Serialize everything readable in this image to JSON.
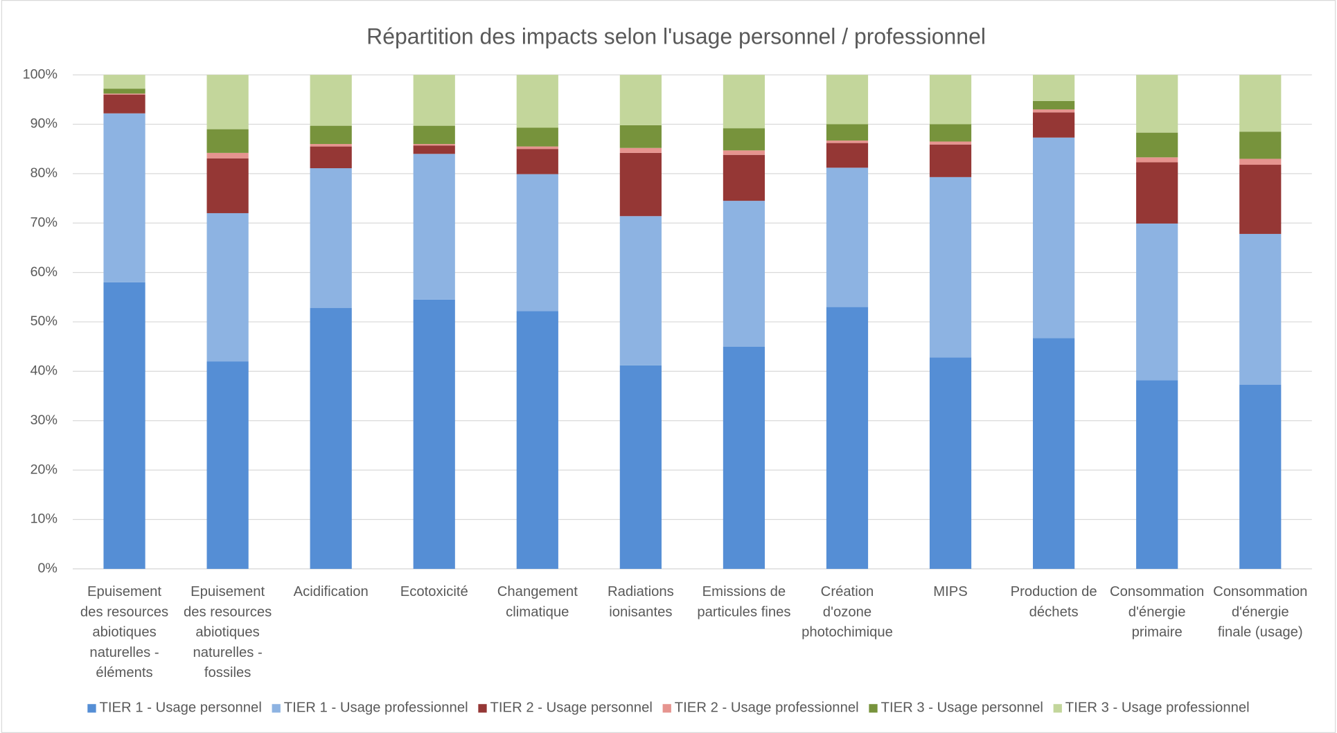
{
  "chart_data": {
    "type": "stacked_bar",
    "title": "Répartition des impacts selon l'usage personnel / professionnel",
    "categories": [
      [
        "Epuisement",
        "des resources",
        "abiotiques",
        "naturelles -",
        "éléments"
      ],
      [
        "Epuisement",
        "des resources",
        "abiotiques",
        "naturelles -",
        "fossiles"
      ],
      [
        "Acidification"
      ],
      [
        "Ecotoxicité"
      ],
      [
        "Changement",
        "climatique"
      ],
      [
        "Radiations",
        "ionisantes"
      ],
      [
        "Emissions de",
        "particules fines"
      ],
      [
        "Création",
        "d'ozone",
        "photochimique"
      ],
      [
        "MIPS"
      ],
      [
        "Production de",
        "déchets"
      ],
      [
        "Consommation",
        "d'énergie",
        "primaire"
      ],
      [
        "Consommation",
        "d'énergie",
        "finale (usage)"
      ]
    ],
    "series": [
      {
        "name": "TIER 1 - Usage personnel",
        "color": "#558ed5",
        "values": [
          58,
          42,
          52.8,
          54.5,
          52.2,
          41.2,
          45,
          53,
          42.8,
          46.7,
          38.2,
          37.3
        ]
      },
      {
        "name": "TIER 1 - Usage professionnel",
        "color": "#8db3e2",
        "values": [
          34.2,
          30,
          28.3,
          29.5,
          27.7,
          30.2,
          29.5,
          28.2,
          36.5,
          40.6,
          31.7,
          30.5
        ]
      },
      {
        "name": "TIER 2 - Usage personnel",
        "color": "#953735",
        "values": [
          3.8,
          11.1,
          4.4,
          1.7,
          5.1,
          12.8,
          9.3,
          5,
          6.6,
          5.1,
          12.4,
          14
        ]
      },
      {
        "name": "TIER 2 - Usage professionnel",
        "color": "#e6948f",
        "values": [
          0.2,
          1.1,
          0.5,
          0.3,
          0.5,
          1,
          0.9,
          0.5,
          0.6,
          0.6,
          1,
          1.2
        ]
      },
      {
        "name": "TIER 3 - Usage personnel",
        "color": "#77933c",
        "values": [
          1,
          4.8,
          3.7,
          3.7,
          3.8,
          4.6,
          4.5,
          3.3,
          3.5,
          1.7,
          5,
          5.5
        ]
      },
      {
        "name": "TIER 3 - Usage professionnel",
        "color": "#c3d69b",
        "values": [
          2.8,
          11,
          10.3,
          10.3,
          10.7,
          10.2,
          10.8,
          10,
          10,
          5.3,
          11.7,
          11.5
        ]
      }
    ],
    "ylim": [
      0,
      100
    ],
    "yticks": [
      {
        "value": 0,
        "label": "0%"
      },
      {
        "value": 10,
        "label": "10%"
      },
      {
        "value": 20,
        "label": "20%"
      },
      {
        "value": 30,
        "label": "30%"
      },
      {
        "value": 40,
        "label": "40%"
      },
      {
        "value": 50,
        "label": "50%"
      },
      {
        "value": 60,
        "label": "60%"
      },
      {
        "value": 70,
        "label": "70%"
      },
      {
        "value": 80,
        "label": "80%"
      },
      {
        "value": 90,
        "label": "90%"
      },
      {
        "value": 100,
        "label": "100%"
      }
    ],
    "grid": true,
    "legend": "bottom"
  }
}
